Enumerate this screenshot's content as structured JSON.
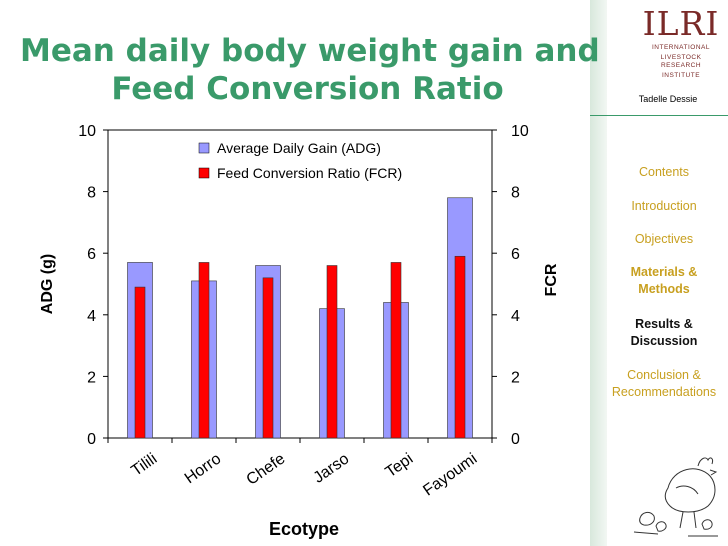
{
  "slide": {
    "title_line1": "Mean daily body weight gain and",
    "title_line2": "Feed Conversion Ratio"
  },
  "sidebar": {
    "logo_text": "ILRI",
    "logo_sub1": "INTERNATIONAL",
    "logo_sub2": "LIVESTOCK RESEARCH",
    "logo_sub3": "INSTITUTE",
    "author": "Tadelle Dessie",
    "nav": [
      {
        "label": "Contents"
      },
      {
        "label": "Introduction"
      },
      {
        "label": "Objectives"
      },
      {
        "label_line1": "Materials &",
        "label_line2": "Methods"
      },
      {
        "label_line1": "Results &",
        "label_line2": "Discussion"
      },
      {
        "label_line1": "Conclusion &",
        "label_line2": "Recommendations"
      }
    ]
  },
  "colors": {
    "title": "#3a9a6a",
    "adg_bar": "#9999ff",
    "fcr_bar": "#ff0000",
    "nav_inactive": "#c8a020",
    "nav_active": "#111111"
  },
  "chart_data": {
    "type": "bar",
    "categories": [
      "Tilili",
      "Horro",
      "Chefe",
      "Jarso",
      "Tepi",
      "Fayoumi"
    ],
    "series": [
      {
        "name": "Average Daily Gain (ADG)",
        "axis": "left",
        "values": [
          5.7,
          5.1,
          5.6,
          4.2,
          4.4,
          7.8
        ]
      },
      {
        "name": "Feed Conversion Ratio (FCR)",
        "axis": "right",
        "values": [
          4.9,
          5.7,
          5.2,
          5.6,
          5.7,
          5.9
        ]
      }
    ],
    "xlabel": "Ecotype",
    "ylabel": "ADG (g)",
    "ylabel_right": "FCR",
    "ylim": [
      0,
      10
    ],
    "ylim_right": [
      0,
      10
    ],
    "yticks": [
      "0",
      "2",
      "4",
      "6",
      "8",
      "10"
    ],
    "legend_position": "top-center",
    "grid": false
  }
}
